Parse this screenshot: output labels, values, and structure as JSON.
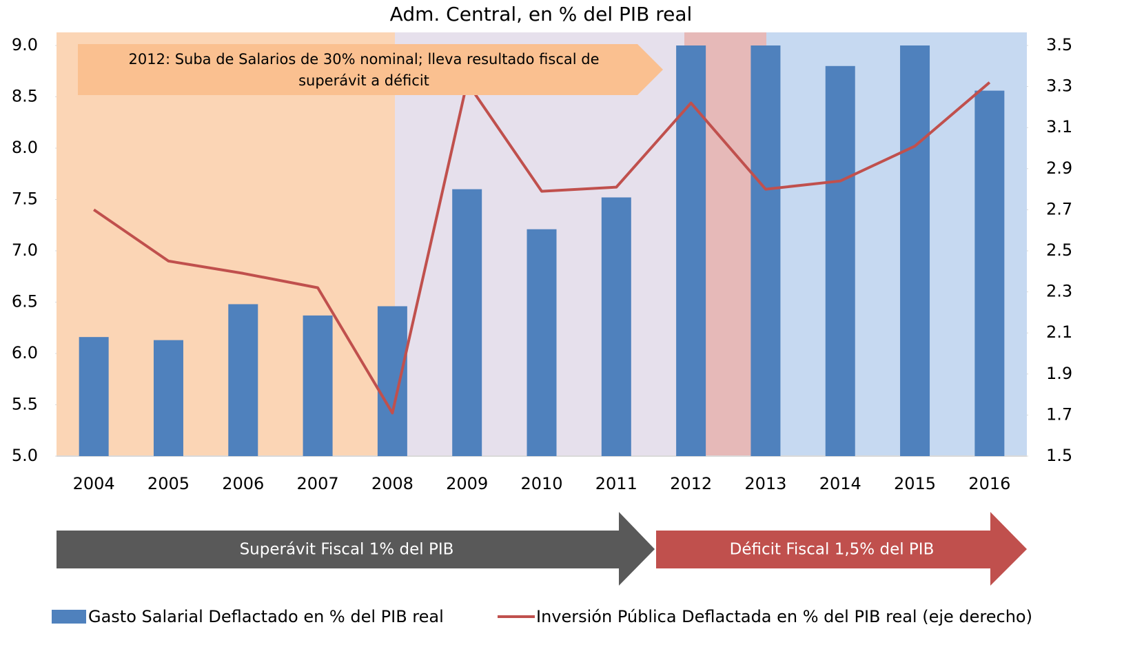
{
  "chart_data": {
    "type": "bar-line",
    "title": "Adm. Central, en % del PIB real",
    "categories": [
      "2004",
      "2005",
      "2006",
      "2007",
      "2008",
      "2009",
      "2010",
      "2011",
      "2012",
      "2013",
      "2014",
      "2015",
      "2016"
    ],
    "series": [
      {
        "name": "Gasto Salarial Deflactado en % del PIB real",
        "type": "bar",
        "color": "#4f81bd",
        "values": [
          6.16,
          6.13,
          6.48,
          6.37,
          6.46,
          7.6,
          7.21,
          7.52,
          9.0,
          9.0,
          8.8,
          9.0,
          8.56
        ]
      },
      {
        "name": "Inversión Pública Deflactada en % del PIB real (eje derecho)",
        "type": "line",
        "axis": "y2",
        "color": "#c0504d",
        "values": [
          2.7,
          2.45,
          2.39,
          2.32,
          1.71,
          3.32,
          2.79,
          2.81,
          3.22,
          2.8,
          2.84,
          3.01,
          3.32
        ]
      }
    ],
    "ylim": [
      5.0,
      9.0
    ],
    "yticks": [
      {
        "value": 5.0,
        "label": "5.0"
      },
      {
        "value": 5.5,
        "label": "5.5"
      },
      {
        "value": 6.0,
        "label": "6.0"
      },
      {
        "value": 6.5,
        "label": "6.5"
      },
      {
        "value": 7.0,
        "label": "7.0"
      },
      {
        "value": 7.5,
        "label": "7.5"
      },
      {
        "value": 8.0,
        "label": "8.0"
      },
      {
        "value": 8.5,
        "label": "8.5"
      },
      {
        "value": 9.0,
        "label": "9.0"
      }
    ],
    "y2lim": [
      1.5,
      3.5
    ],
    "y2ticks": [
      1.5,
      1.7,
      1.9,
      2.1,
      2.3,
      2.5,
      2.7,
      2.9,
      3.1,
      3.3,
      3.5
    ],
    "annotation": [
      "2012: Suba de Salarios de 30% nominal; lleva resultado fiscal de",
      "superávit a déficit"
    ],
    "periods": [
      "Superávit Fiscal 1% del PIB",
      "Déficit Fiscal 1,5% del PIB"
    ],
    "legend": "bottom"
  }
}
